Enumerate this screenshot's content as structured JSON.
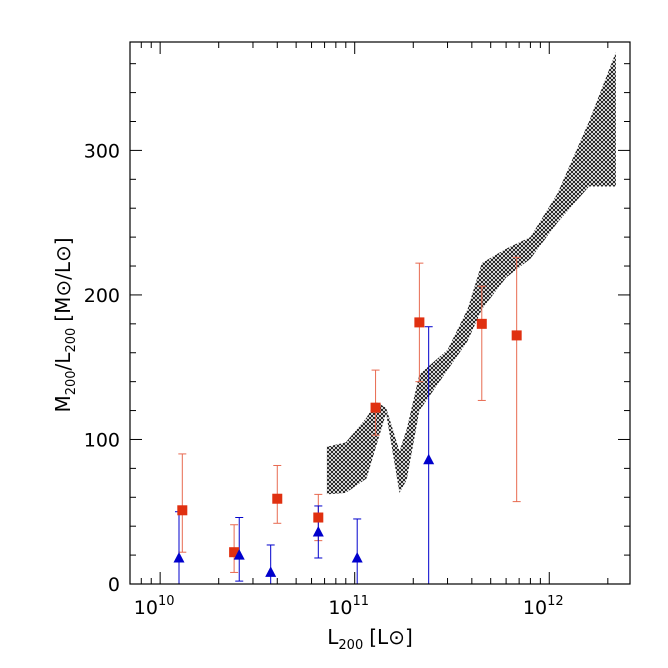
{
  "chart_data": {
    "type": "scatter",
    "title": "",
    "xlabel": {
      "main": "L",
      "sub": "200",
      "unit": "[L⊙]"
    },
    "ylabel": {
      "main": "M",
      "sub1": "200",
      "slash": "/L",
      "sub2": "200",
      "unit": "[M⊙/L⊙]"
    },
    "xscale": "log",
    "xlim": [
      7000000000.0,
      2600000000000.0
    ],
    "ylim": [
      0,
      375
    ],
    "x_ticks": [
      {
        "value": 10000000000.0,
        "base": "10",
        "exp": "10"
      },
      {
        "value": 100000000000.0,
        "base": "10",
        "exp": "11"
      },
      {
        "value": 1000000000000.0,
        "base": "10",
        "exp": "12"
      }
    ],
    "y_ticks": [
      {
        "value": 0,
        "label": "0"
      },
      {
        "value": 100,
        "label": "100"
      },
      {
        "value": 200,
        "label": "200"
      },
      {
        "value": 300,
        "label": "300"
      }
    ],
    "grid": false,
    "legend": "none",
    "colors": {
      "red": "#e03010",
      "red_err": "#e86a50",
      "blue": "#0000cc",
      "band": "#000000"
    },
    "band": {
      "style": "cross-hatched",
      "x": [
        72000000000.0,
        90000000000.0,
        115000000000.0,
        128000000000.0,
        145000000000.0,
        170000000000.0,
        185000000000.0,
        215000000000.0,
        300000000000.0,
        380000000000.0,
        450000000000.0,
        600000000000.0,
        800000000000.0,
        1100000000000.0,
        1600000000000.0,
        2200000000000.0
      ],
      "upper": [
        95,
        98,
        115,
        126,
        122,
        92,
        107,
        145,
        162,
        190,
        222,
        232,
        240,
        270,
        320,
        368
      ],
      "lower": [
        62,
        63,
        73,
        94,
        118,
        63,
        72,
        120,
        148,
        168,
        190,
        212,
        225,
        250,
        275,
        275
      ]
    },
    "series": [
      {
        "marker": "square",
        "color": "red",
        "points": [
          {
            "x": 13000000000.0,
            "y": 51,
            "lo": 22,
            "hi": 90
          },
          {
            "x": 24000000000.0,
            "y": 22,
            "lo": 8,
            "hi": 41
          },
          {
            "x": 40000000000.0,
            "y": 59,
            "lo": 42,
            "hi": 82
          },
          {
            "x": 65000000000.0,
            "y": 46,
            "lo": 30,
            "hi": 62
          },
          {
            "x": 128000000000.0,
            "y": 122,
            "lo": 103,
            "hi": 148
          },
          {
            "x": 215000000000.0,
            "y": 181,
            "lo": 140,
            "hi": 222
          },
          {
            "x": 450000000000.0,
            "y": 180,
            "lo": 127,
            "hi": 206
          },
          {
            "x": 680000000000.0,
            "y": 172,
            "lo": 57,
            "hi": 226
          }
        ]
      },
      {
        "marker": "triangle",
        "color": "blue",
        "points": [
          {
            "x": 12500000000.0,
            "y": 18,
            "lo": 0,
            "hi": 50
          },
          {
            "x": 25500000000.0,
            "y": 20,
            "lo": 2,
            "hi": 46
          },
          {
            "x": 37000000000.0,
            "y": 8,
            "lo": 0,
            "hi": 27
          },
          {
            "x": 65000000000.0,
            "y": 36,
            "lo": 18,
            "hi": 54
          },
          {
            "x": 103000000000.0,
            "y": 18,
            "lo": 0,
            "hi": 45
          },
          {
            "x": 240000000000.0,
            "y": 86,
            "lo": 0,
            "hi": 178
          }
        ]
      }
    ]
  }
}
